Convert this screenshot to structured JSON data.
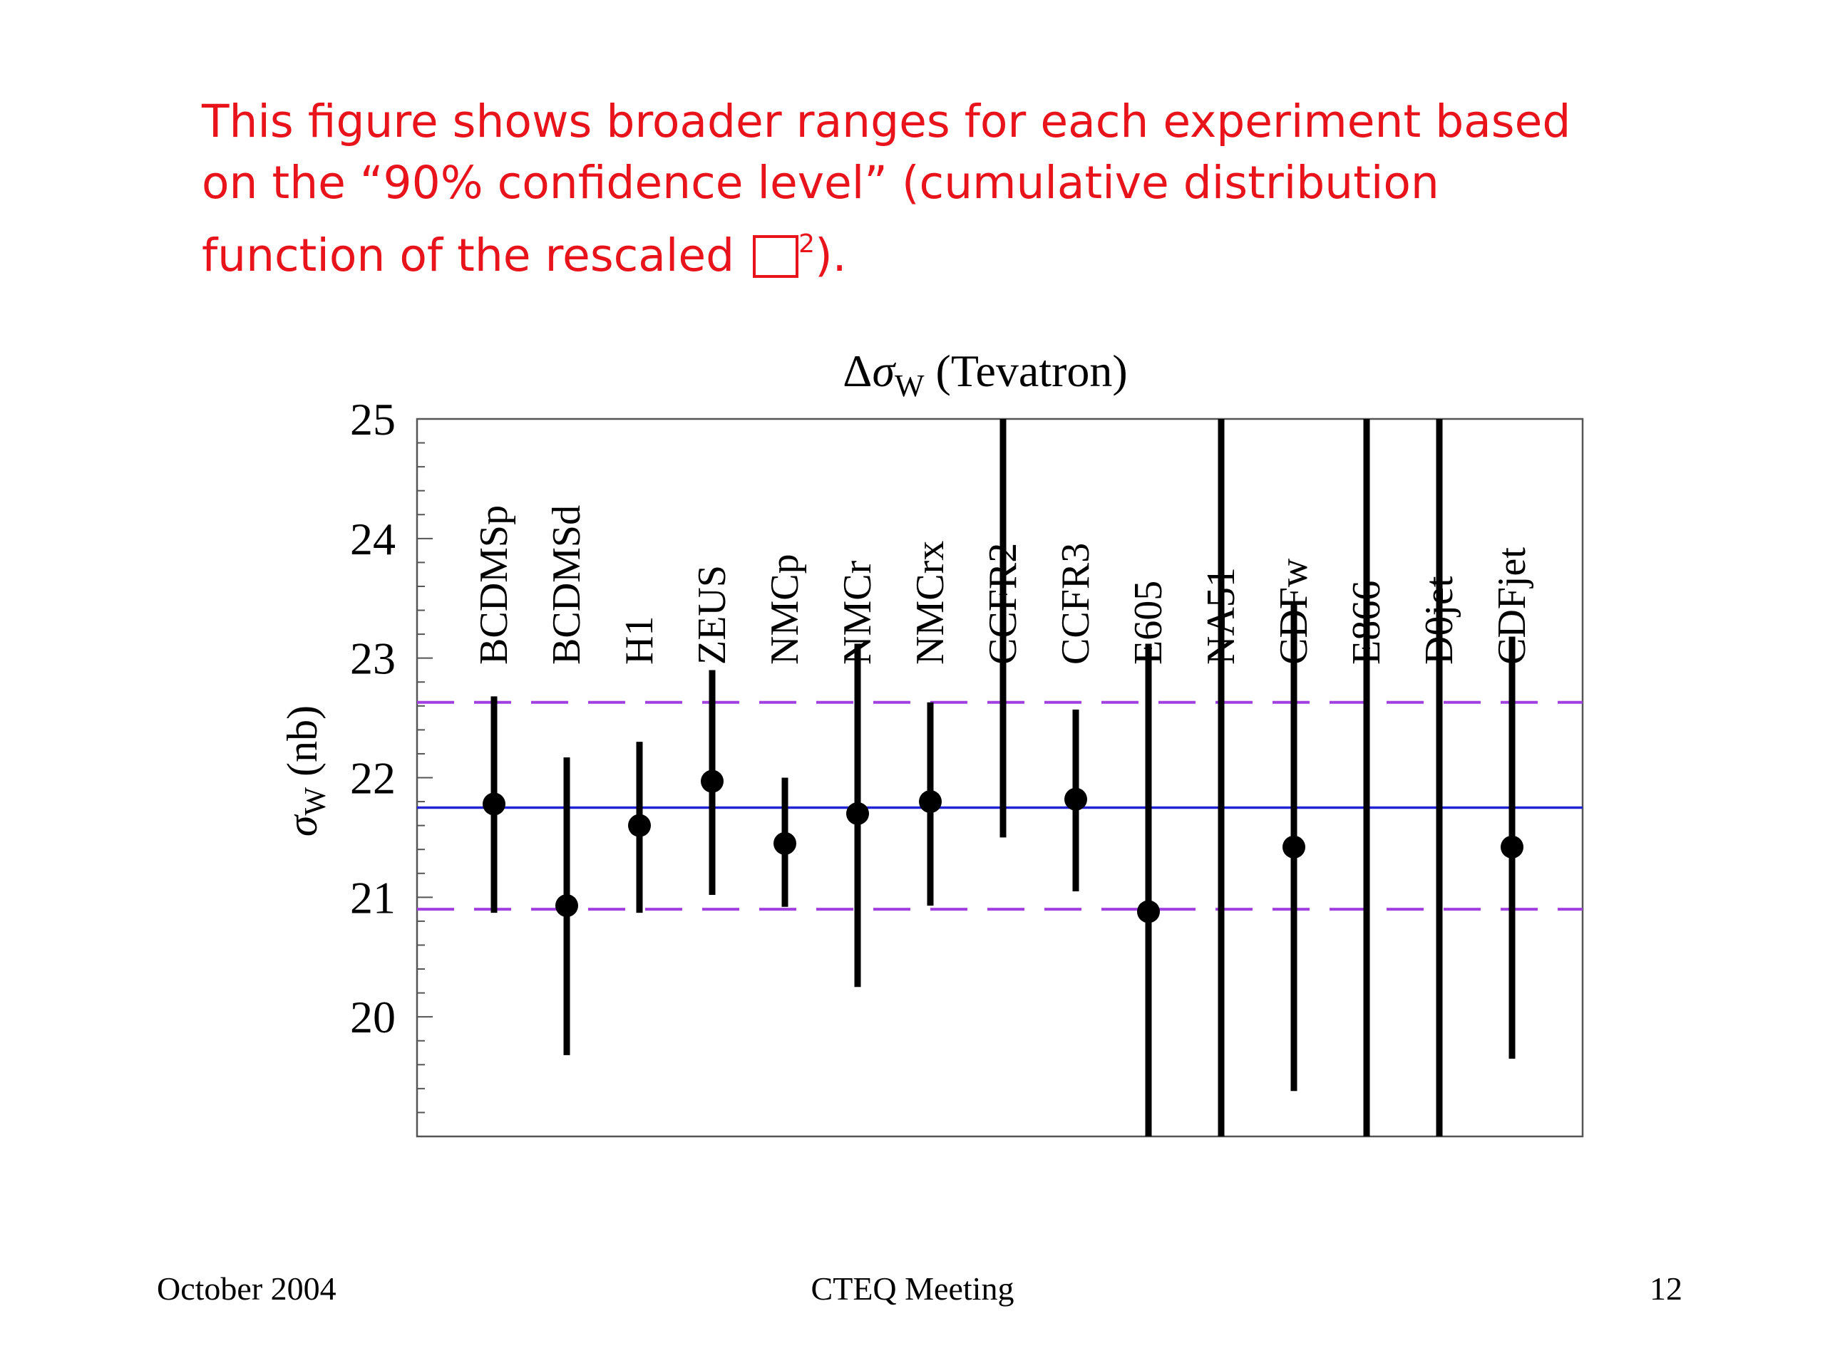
{
  "caption": {
    "line1": "This figure shows broader ranges for each experiment based",
    "line2": "on the “90% confidence level” (cumulative distribution",
    "line3_prefix": "function of the rescaled ",
    "line3_sup": "2",
    "line3_suffix": ").",
    "color": "#e8131b"
  },
  "footer": {
    "left": "October 2004",
    "center": "CTEQ Meeting",
    "right": "12"
  },
  "chart_data": {
    "type": "scatter",
    "title_delta": "Δ",
    "title_sigma": "σ",
    "title_sub": "W",
    "title_rest": " (Tevatron)",
    "ylabel_sigma": "σ",
    "ylabel_sub": "W",
    "ylabel_rest": " (nb)",
    "ylim": [
      19.0,
      25.0
    ],
    "yticks": [
      20,
      21,
      22,
      23,
      24,
      25
    ],
    "grid": false,
    "reference_line": 21.75,
    "band": [
      20.9,
      22.63
    ],
    "colors": {
      "reference": "#2323d6",
      "band": "#a040e0",
      "points": "#000000"
    },
    "experiments": [
      {
        "name": "BCDMSp",
        "value": 21.78,
        "low": 20.87,
        "high": 22.68,
        "struck": false
      },
      {
        "name": "BCDMSd",
        "value": 20.93,
        "low": 19.68,
        "high": 22.17,
        "struck": false
      },
      {
        "name": "H1",
        "value": 21.6,
        "low": 20.87,
        "high": 22.3,
        "struck": false
      },
      {
        "name": "ZEUS",
        "value": 21.97,
        "low": 21.02,
        "high": 22.9,
        "struck": false
      },
      {
        "name": "NMCp",
        "value": 21.45,
        "low": 20.92,
        "high": 22.0,
        "struck": false
      },
      {
        "name": "NMCr",
        "value": 21.7,
        "low": 20.25,
        "high": 23.12,
        "struck": false
      },
      {
        "name": "NMCrx",
        "value": 21.8,
        "low": 20.93,
        "high": 22.63,
        "struck": false
      },
      {
        "name": "CCFR2",
        "value": null,
        "low": 21.5,
        "high": 25.0,
        "struck": true
      },
      {
        "name": "CCFR3",
        "value": 21.82,
        "low": 21.05,
        "high": 22.57,
        "struck": false
      },
      {
        "name": "E605",
        "value": 20.88,
        "low": 19.0,
        "high": 23.12,
        "struck": false
      },
      {
        "name": "NA51",
        "value": null,
        "low": 19.0,
        "high": 25.0,
        "struck": true
      },
      {
        "name": "CDFw",
        "value": 21.42,
        "low": 19.38,
        "high": 23.45,
        "struck": false
      },
      {
        "name": "E866",
        "value": null,
        "low": 19.0,
        "high": 25.0,
        "struck": true
      },
      {
        "name": "D0jet",
        "value": null,
        "low": 19.0,
        "high": 25.0,
        "struck": true
      },
      {
        "name": "CDFjet",
        "value": 21.42,
        "low": 19.65,
        "high": 23.18,
        "struck": false
      }
    ]
  }
}
